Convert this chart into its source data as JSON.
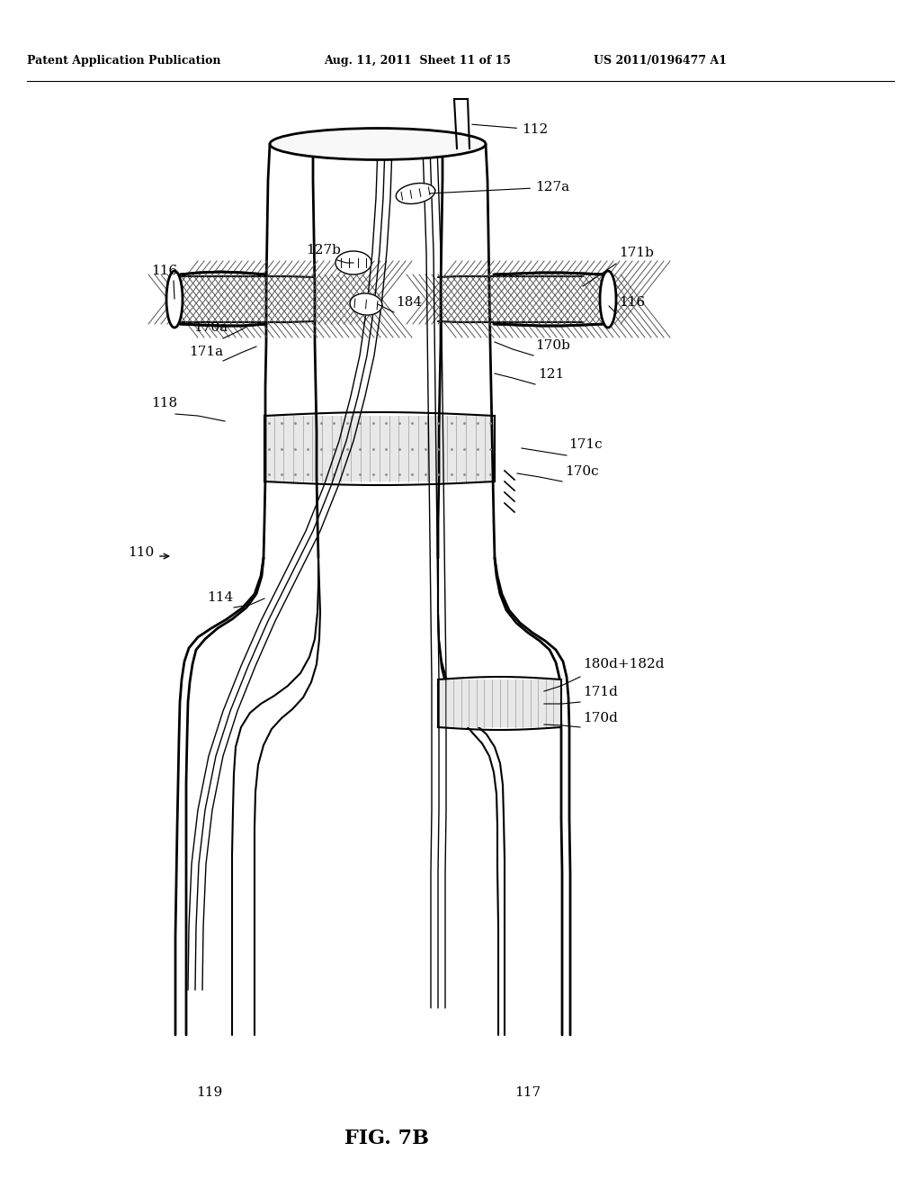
{
  "header_left": "Patent Application Publication",
  "header_mid": "Aug. 11, 2011  Sheet 11 of 15",
  "header_right": "US 2011/0196477 A1",
  "fig_label": "FIG. 7B",
  "background_color": "#ffffff",
  "line_color": "#000000"
}
